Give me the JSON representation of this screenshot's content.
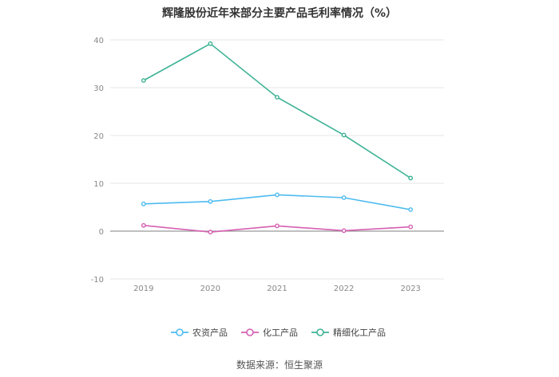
{
  "chart_data": {
    "type": "line",
    "title": "辉隆股份近年来部分主要产品毛利率情况（%）",
    "categories": [
      "2019",
      "2020",
      "2021",
      "2022",
      "2023"
    ],
    "ylim": [
      -10,
      40
    ],
    "yticks": [
      -10,
      0,
      10,
      20,
      30,
      40
    ],
    "xlabel": "",
    "ylabel": "",
    "grid": true,
    "legend_position": "bottom",
    "series": [
      {
        "name": "农资产品",
        "color": "#4dbbf0",
        "values": [
          5.7,
          6.2,
          7.6,
          7.0,
          4.5
        ]
      },
      {
        "name": "化工产品",
        "color": "#d65fb1",
        "values": [
          1.2,
          -0.2,
          1.1,
          0.1,
          0.9
        ]
      },
      {
        "name": "精细化工产品",
        "color": "#3db395",
        "values": [
          31.5,
          39.2,
          28.0,
          20.1,
          11.1
        ]
      }
    ]
  },
  "source_text": "数据来源：恒生聚源"
}
